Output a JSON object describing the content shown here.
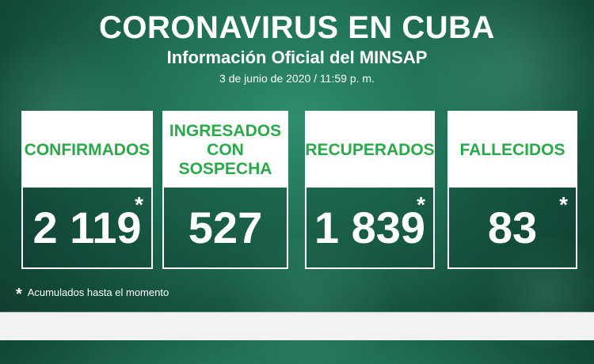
{
  "header": {
    "title": "CORONAVIRUS EN CUBA",
    "subtitle": "Información Oficial del MINSAP",
    "date": "3 de junio de 2020 / 11:59 p. m."
  },
  "cards": [
    {
      "label": "CONFIRMADOS",
      "value": "2 119",
      "star": "*"
    },
    {
      "label": "INGRESADOS CON SOSPECHA",
      "value": "527",
      "star": ""
    },
    {
      "label": "RECUPERADOS",
      "value": "1 839",
      "star": "*"
    },
    {
      "label": "FALLECIDOS",
      "value": "83",
      "star": "*"
    }
  ],
  "footnote": {
    "star": "*",
    "text": "Acumulados hasta el momento"
  },
  "colors": {
    "label_green": "#2aa84a",
    "background": "#1f6e55"
  }
}
